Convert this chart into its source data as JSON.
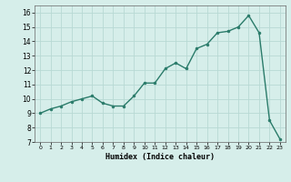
{
  "x": [
    0,
    1,
    2,
    3,
    4,
    5,
    6,
    7,
    8,
    9,
    10,
    11,
    12,
    13,
    14,
    15,
    16,
    17,
    18,
    19,
    20,
    21,
    22,
    23
  ],
  "y": [
    9,
    9.3,
    9.5,
    9.8,
    10.0,
    10.2,
    9.7,
    9.5,
    9.5,
    10.2,
    11.1,
    11.1,
    12.1,
    12.5,
    12.1,
    13.5,
    13.8,
    14.6,
    14.7,
    15.0,
    15.8,
    14.6,
    8.5,
    7.2
  ],
  "xlabel": "Humidex (Indice chaleur)",
  "line_color": "#2a7b6a",
  "marker_color": "#2a7b6a",
  "bg_color": "#d6eeea",
  "grid_color": "#b8d9d4",
  "ylim": [
    7,
    16.5
  ],
  "xlim": [
    -0.5,
    23.5
  ],
  "yticks": [
    7,
    8,
    9,
    10,
    11,
    12,
    13,
    14,
    15,
    16
  ],
  "xticks": [
    0,
    1,
    2,
    3,
    4,
    5,
    6,
    7,
    8,
    9,
    10,
    11,
    12,
    13,
    14,
    15,
    16,
    17,
    18,
    19,
    20,
    21,
    22,
    23
  ]
}
